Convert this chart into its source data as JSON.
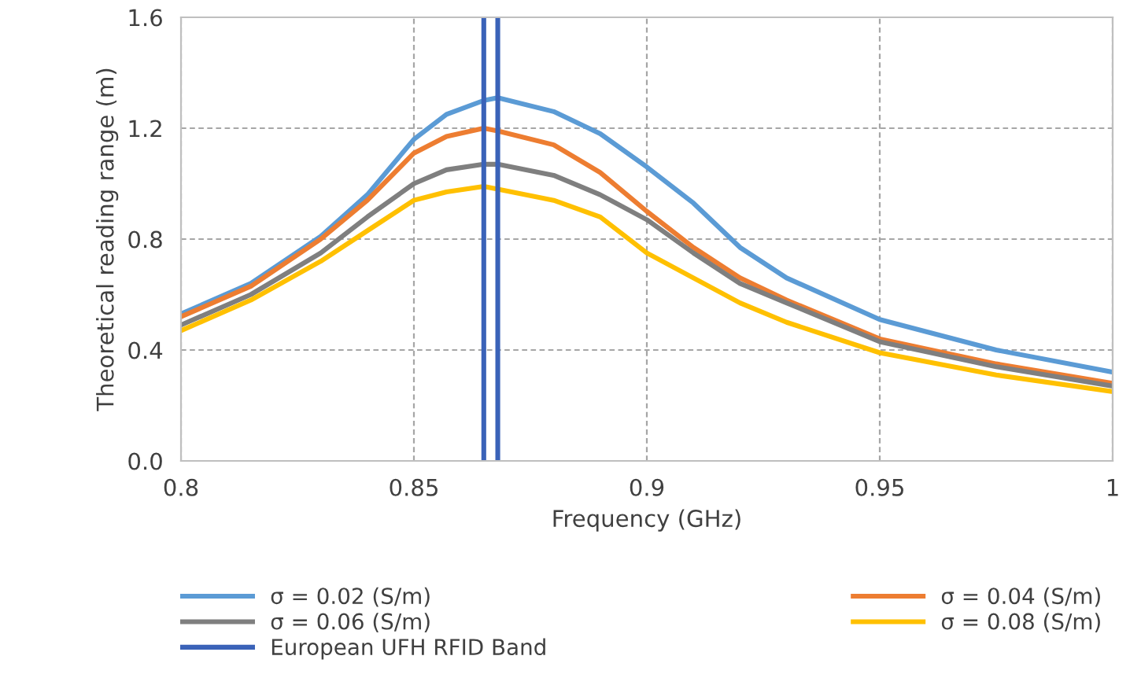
{
  "chart_data": {
    "type": "line",
    "xlabel": "Frequency (GHz)",
    "ylabel": "Theoretical reading range (m)",
    "x": [
      0.8,
      0.815,
      0.83,
      0.84,
      0.85,
      0.857,
      0.865,
      0.868,
      0.88,
      0.89,
      0.9,
      0.91,
      0.92,
      0.93,
      0.95,
      0.975,
      1.0
    ],
    "series": [
      {
        "name": "σ = 0.02 (S/m)",
        "color": "#5b9bd5",
        "values": [
          0.53,
          0.64,
          0.81,
          0.96,
          1.16,
          1.25,
          1.3,
          1.31,
          1.26,
          1.18,
          1.06,
          0.93,
          0.77,
          0.66,
          0.51,
          0.4,
          0.32
        ]
      },
      {
        "name": "σ = 0.04 (S/m)",
        "color": "#ed7d31",
        "values": [
          0.52,
          0.63,
          0.8,
          0.94,
          1.11,
          1.17,
          1.2,
          1.19,
          1.14,
          1.04,
          0.9,
          0.77,
          0.66,
          0.58,
          0.44,
          0.35,
          0.28
        ]
      },
      {
        "name": "σ = 0.06 (S/m)",
        "color": "#7f7f7f",
        "values": [
          0.49,
          0.6,
          0.75,
          0.88,
          1.0,
          1.05,
          1.07,
          1.07,
          1.03,
          0.96,
          0.87,
          0.75,
          0.64,
          0.57,
          0.43,
          0.34,
          0.27
        ]
      },
      {
        "name": "σ = 0.08 (S/m)",
        "color": "#ffc000",
        "values": [
          0.47,
          0.58,
          0.72,
          0.83,
          0.94,
          0.97,
          0.99,
          0.98,
          0.94,
          0.88,
          0.75,
          0.66,
          0.57,
          0.5,
          0.39,
          0.31,
          0.25
        ]
      }
    ],
    "ref_lines": [
      {
        "axis": "x",
        "value": 0.865,
        "label": "European UFH RFID Band",
        "color": "#3a62b8"
      },
      {
        "axis": "x",
        "value": 0.868,
        "label": null,
        "color": "#3a62b8"
      }
    ],
    "xlim": [
      0.8,
      1.0
    ],
    "xticks": [
      0.8,
      0.85,
      0.9,
      0.95,
      {
        "value": 1.0,
        "label": "1"
      }
    ],
    "ylim": [
      0,
      1.6
    ],
    "yticks": [
      {
        "value": 0,
        "label": "0.0"
      },
      0.4,
      0.8,
      1.2,
      1.6
    ],
    "grid": true,
    "legend": "bottom",
    "line_style": "solid",
    "marker": "none"
  }
}
